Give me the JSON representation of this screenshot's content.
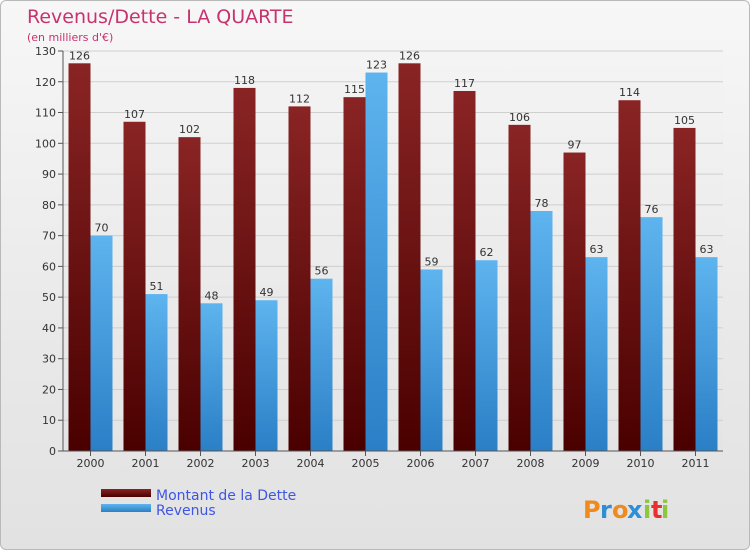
{
  "chart_data": {
    "type": "bar",
    "title": "Revenus/Dette - LA QUARTE",
    "subtitle": "(en milliers d'€)",
    "categories": [
      "2000",
      "2001",
      "2002",
      "2003",
      "2004",
      "2005",
      "2006",
      "2007",
      "2008",
      "2009",
      "2010",
      "2011"
    ],
    "series": [
      {
        "name": "Montant de la Dette",
        "color": "#7a1010",
        "values": [
          126,
          107,
          102,
          118,
          112,
          115,
          126,
          117,
          106,
          97,
          114,
          105
        ]
      },
      {
        "name": "Revenus",
        "color": "#3d9ce4",
        "values": [
          70,
          51,
          48,
          49,
          56,
          123,
          59,
          62,
          78,
          63,
          76,
          63
        ]
      }
    ],
    "ylim": [
      0,
      130
    ],
    "yticks": [
      0,
      10,
      20,
      30,
      40,
      50,
      60,
      70,
      80,
      90,
      100,
      110,
      120,
      130
    ],
    "grid": true,
    "legend": "bottom-left"
  },
  "logo": {
    "text": "Proxiti",
    "colors": [
      "#f08a1c",
      "#2e8fd6",
      "#f08a1c",
      "#2e8fd6",
      "#8dc63f",
      "#e8312f",
      "#8dc63f"
    ]
  }
}
